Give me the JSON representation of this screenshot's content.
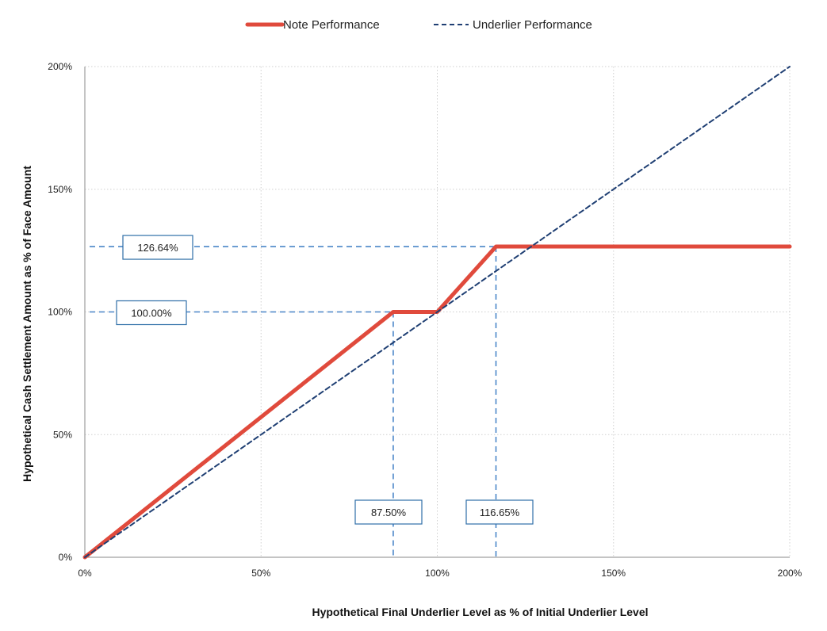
{
  "chart_data": {
    "type": "line",
    "xlabel": "Hypothetical Final Underlier Level as % of Initial Underlier Level",
    "ylabel": "Hypothetical Cash Settlement Amount as % of Face Amount",
    "xlim": [
      0,
      200
    ],
    "ylim": [
      0,
      200
    ],
    "x_ticks": [
      "0%",
      "50%",
      "100%",
      "150%",
      "200%"
    ],
    "y_ticks": [
      "0%",
      "50%",
      "100%",
      "150%",
      "200%"
    ],
    "grid": true,
    "legend_position": "top-center",
    "series": [
      {
        "name": "Note Performance",
        "color": "#e04a3c",
        "style": "solid",
        "x": [
          0,
          87.5,
          100,
          116.65,
          200
        ],
        "y": [
          0,
          100,
          100,
          126.64,
          126.64
        ]
      },
      {
        "name": "Underlier Performance",
        "color": "#1f3f73",
        "style": "dashed",
        "x": [
          0,
          200
        ],
        "y": [
          0,
          200
        ]
      }
    ],
    "annotations": [
      {
        "label": "126.64%",
        "kind": "horizontal",
        "value": 126.64,
        "to_x": 116.65
      },
      {
        "label": "100.00%",
        "kind": "horizontal",
        "value": 100,
        "to_x": 87.5
      },
      {
        "label": "87.50%",
        "kind": "vertical",
        "value": 87.5,
        "to_y": 100
      },
      {
        "label": "116.65%",
        "kind": "vertical",
        "value": 116.65,
        "to_y": 126.64
      }
    ],
    "annotation_line_color": "#4a86c8"
  }
}
